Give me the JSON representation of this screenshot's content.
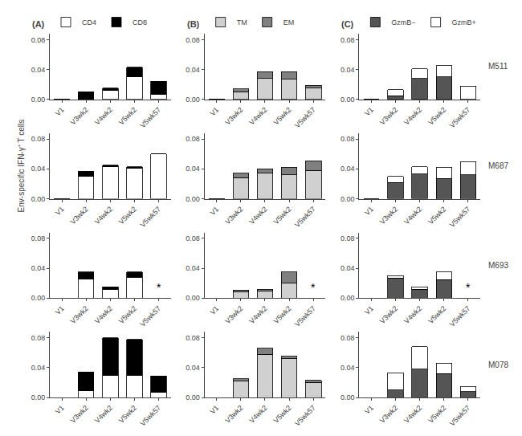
{
  "chart_data": [
    {
      "type": "bar",
      "stacked": true,
      "title": "(A)",
      "legend": "top",
      "grid": false,
      "categories": [
        "V1",
        "V3wk2",
        "V4wk2",
        "V5wk2",
        "V5wk57"
      ],
      "series": [
        {
          "name": "CD4",
          "color": "#ffffff",
          "values": [
            0.0,
            0.0,
            0.012,
            0.03,
            0.007
          ]
        },
        {
          "name": "CD8",
          "color": "#000000",
          "values": [
            0.0,
            0.01,
            0.003,
            0.013,
            0.017
          ]
        }
      ],
      "ylim": [
        0,
        0.088
      ],
      "yticks": [
        {
          "value": 0,
          "label": "0.00"
        },
        0.04,
        0.08
      ]
    },
    {
      "type": "bar",
      "stacked": true,
      "title": "(B)",
      "legend": "top",
      "grid": false,
      "categories": [
        "V1",
        "V3wk2",
        "V4wk2",
        "V5wk2",
        "V5wk57"
      ],
      "series": [
        {
          "name": "TM",
          "color": "#d0d0d0",
          "values": [
            0.0,
            0.01,
            0.028,
            0.027,
            0.015
          ]
        },
        {
          "name": "EM",
          "color": "#808080",
          "values": [
            0.0,
            0.004,
            0.009,
            0.01,
            0.004
          ]
        }
      ],
      "ylim": [
        0,
        0.088
      ],
      "yticks": [
        {
          "value": 0,
          "label": "0.00"
        },
        0.04,
        0.08
      ]
    },
    {
      "type": "bar",
      "stacked": true,
      "title": "(C)",
      "legend": "top",
      "grid": false,
      "categories": [
        "V1",
        "V3wk2",
        "V4wk2",
        "V5wk2",
        "V5wk57"
      ],
      "series": [
        {
          "name": "GzmB−",
          "color": "#555555",
          "values": [
            0.0,
            0.005,
            0.028,
            0.03,
            0.0
          ]
        },
        {
          "name": "GzmB+",
          "color": "#ffffff",
          "values": [
            0.0,
            0.008,
            0.013,
            0.015,
            0.018
          ]
        }
      ],
      "ylim": [
        0,
        0.088
      ],
      "yticks": [
        {
          "value": 0,
          "label": "0.00"
        },
        0.04,
        0.08
      ],
      "annotations": [
        {
          "text": "M511"
        }
      ]
    },
    {
      "type": "bar",
      "stacked": true,
      "grid": false,
      "ylabel": "Env-specific IFN-γ⁺ T cells",
      "categories": [
        "V1",
        "V3wk2",
        "V4wk2",
        "V5wk2",
        "V5wk57"
      ],
      "series": [
        {
          "name": "CD4",
          "color": "#ffffff",
          "values": [
            0.0,
            0.03,
            0.043,
            0.041,
            0.06
          ]
        },
        {
          "name": "CD8",
          "color": "#000000",
          "values": [
            0.0,
            0.007,
            0.002,
            0.002,
            0.0
          ]
        }
      ],
      "ylim": [
        0,
        0.088
      ],
      "yticks": [
        {
          "value": 0,
          "label": "0.00"
        },
        0.04,
        0.08
      ]
    },
    {
      "type": "bar",
      "stacked": true,
      "grid": false,
      "categories": [
        "V1",
        "V3wk2",
        "V4wk2",
        "V5wk2",
        "V5wk57"
      ],
      "series": [
        {
          "name": "TM",
          "color": "#d0d0d0",
          "values": [
            0.0,
            0.028,
            0.034,
            0.032,
            0.038
          ]
        },
        {
          "name": "EM",
          "color": "#808080",
          "values": [
            0.0,
            0.006,
            0.006,
            0.01,
            0.013
          ]
        }
      ],
      "ylim": [
        0,
        0.088
      ],
      "yticks": [
        {
          "value": 0,
          "label": "0.00"
        },
        0.04,
        0.08
      ]
    },
    {
      "type": "bar",
      "stacked": true,
      "grid": false,
      "categories": [
        "V1",
        "V3wk2",
        "V4wk2",
        "V5wk2",
        "V5wk57"
      ],
      "series": [
        {
          "name": "GzmB−",
          "color": "#555555",
          "values": [
            0.0,
            0.022,
            0.033,
            0.027,
            0.032
          ]
        },
        {
          "name": "GzmB+",
          "color": "#ffffff",
          "values": [
            0.0,
            0.008,
            0.01,
            0.015,
            0.018
          ]
        }
      ],
      "ylim": [
        0,
        0.088
      ],
      "yticks": [
        {
          "value": 0,
          "label": "0.00"
        },
        0.04,
        0.08
      ],
      "annotations": [
        {
          "text": "M687"
        }
      ]
    },
    {
      "type": "bar",
      "stacked": true,
      "grid": false,
      "categories": [
        "V1",
        "V3wk2",
        "V4wk2",
        "V5wk2",
        "V5wk57"
      ],
      "series": [
        {
          "name": "CD4",
          "color": "#ffffff",
          "values": [
            0.0,
            0.026,
            0.012,
            0.028,
            null
          ]
        },
        {
          "name": "CD8",
          "color": "#000000",
          "values": [
            0.0,
            0.009,
            0.003,
            0.007,
            null
          ]
        }
      ],
      "ylim": [
        0,
        0.088
      ],
      "yticks": [
        {
          "value": 0,
          "label": "0.00"
        },
        0.04,
        0.08
      ],
      "annotations": [
        {
          "text": "*",
          "x": "V5wk57",
          "y": 0.003
        }
      ]
    },
    {
      "type": "bar",
      "stacked": true,
      "grid": false,
      "categories": [
        "V1",
        "V3wk2",
        "V4wk2",
        "V5wk2",
        "V5wk57"
      ],
      "series": [
        {
          "name": "TM",
          "color": "#d0d0d0",
          "values": [
            0.0,
            0.008,
            0.009,
            0.02,
            null
          ]
        },
        {
          "name": "EM",
          "color": "#808080",
          "values": [
            0.0,
            0.003,
            0.003,
            0.015,
            null
          ]
        }
      ],
      "ylim": [
        0,
        0.088
      ],
      "yticks": [
        {
          "value": 0,
          "label": "0.00"
        },
        0.04,
        0.08
      ],
      "annotations": [
        {
          "text": "*",
          "x": "V5wk57",
          "y": 0.003
        }
      ]
    },
    {
      "type": "bar",
      "stacked": true,
      "grid": false,
      "categories": [
        "V1",
        "V3wk2",
        "V4wk2",
        "V5wk2",
        "V5wk57"
      ],
      "series": [
        {
          "name": "GzmB−",
          "color": "#555555",
          "values": [
            0.0,
            0.027,
            0.012,
            0.025,
            null
          ]
        },
        {
          "name": "GzmB+",
          "color": "#ffffff",
          "values": [
            0.0,
            0.003,
            0.003,
            0.01,
            null
          ]
        }
      ],
      "ylim": [
        0,
        0.088
      ],
      "yticks": [
        {
          "value": 0,
          "label": "0.00"
        },
        0.04,
        0.08
      ],
      "annotations": [
        {
          "text": "*",
          "x": "V5wk57",
          "y": 0.003
        },
        {
          "text": "M693"
        }
      ]
    },
    {
      "type": "bar",
      "stacked": true,
      "grid": false,
      "categories": [
        "V1",
        "V3wk2",
        "V4wk2",
        "V5wk2",
        "V5wk57"
      ],
      "series": [
        {
          "name": "CD4",
          "color": "#ffffff",
          "values": [
            0.0,
            0.009,
            0.03,
            0.03,
            0.007
          ]
        },
        {
          "name": "CD8",
          "color": "#000000",
          "values": [
            0.0,
            0.025,
            0.05,
            0.048,
            0.022
          ]
        }
      ],
      "ylim": [
        0,
        0.088
      ],
      "yticks": [
        {
          "value": 0,
          "label": "0.00"
        },
        0.04,
        0.08
      ]
    },
    {
      "type": "bar",
      "stacked": true,
      "grid": false,
      "categories": [
        "V1",
        "V3wk2",
        "V4wk2",
        "V5wk2",
        "V5wk57"
      ],
      "series": [
        {
          "name": "TM",
          "color": "#d0d0d0",
          "values": [
            0.0,
            0.022,
            0.058,
            0.052,
            0.02
          ]
        },
        {
          "name": "EM",
          "color": "#808080",
          "values": [
            0.0,
            0.003,
            0.008,
            0.003,
            0.003
          ]
        }
      ],
      "ylim": [
        0,
        0.088
      ],
      "yticks": [
        {
          "value": 0,
          "label": "0.00"
        },
        0.04,
        0.08
      ]
    },
    {
      "type": "bar",
      "stacked": true,
      "grid": false,
      "categories": [
        "V1",
        "V3wk2",
        "V4wk2",
        "V5wk2",
        "V5wk57"
      ],
      "series": [
        {
          "name": "GzmB−",
          "color": "#555555",
          "values": [
            0.0,
            0.01,
            0.038,
            0.032,
            0.008
          ]
        },
        {
          "name": "GzmB+",
          "color": "#ffffff",
          "values": [
            0.0,
            0.023,
            0.03,
            0.014,
            0.007
          ]
        }
      ],
      "ylim": [
        0,
        0.088
      ],
      "yticks": [
        {
          "value": 0,
          "label": "0.00"
        },
        0.04,
        0.08
      ],
      "annotations": [
        {
          "text": "M078"
        }
      ]
    }
  ]
}
